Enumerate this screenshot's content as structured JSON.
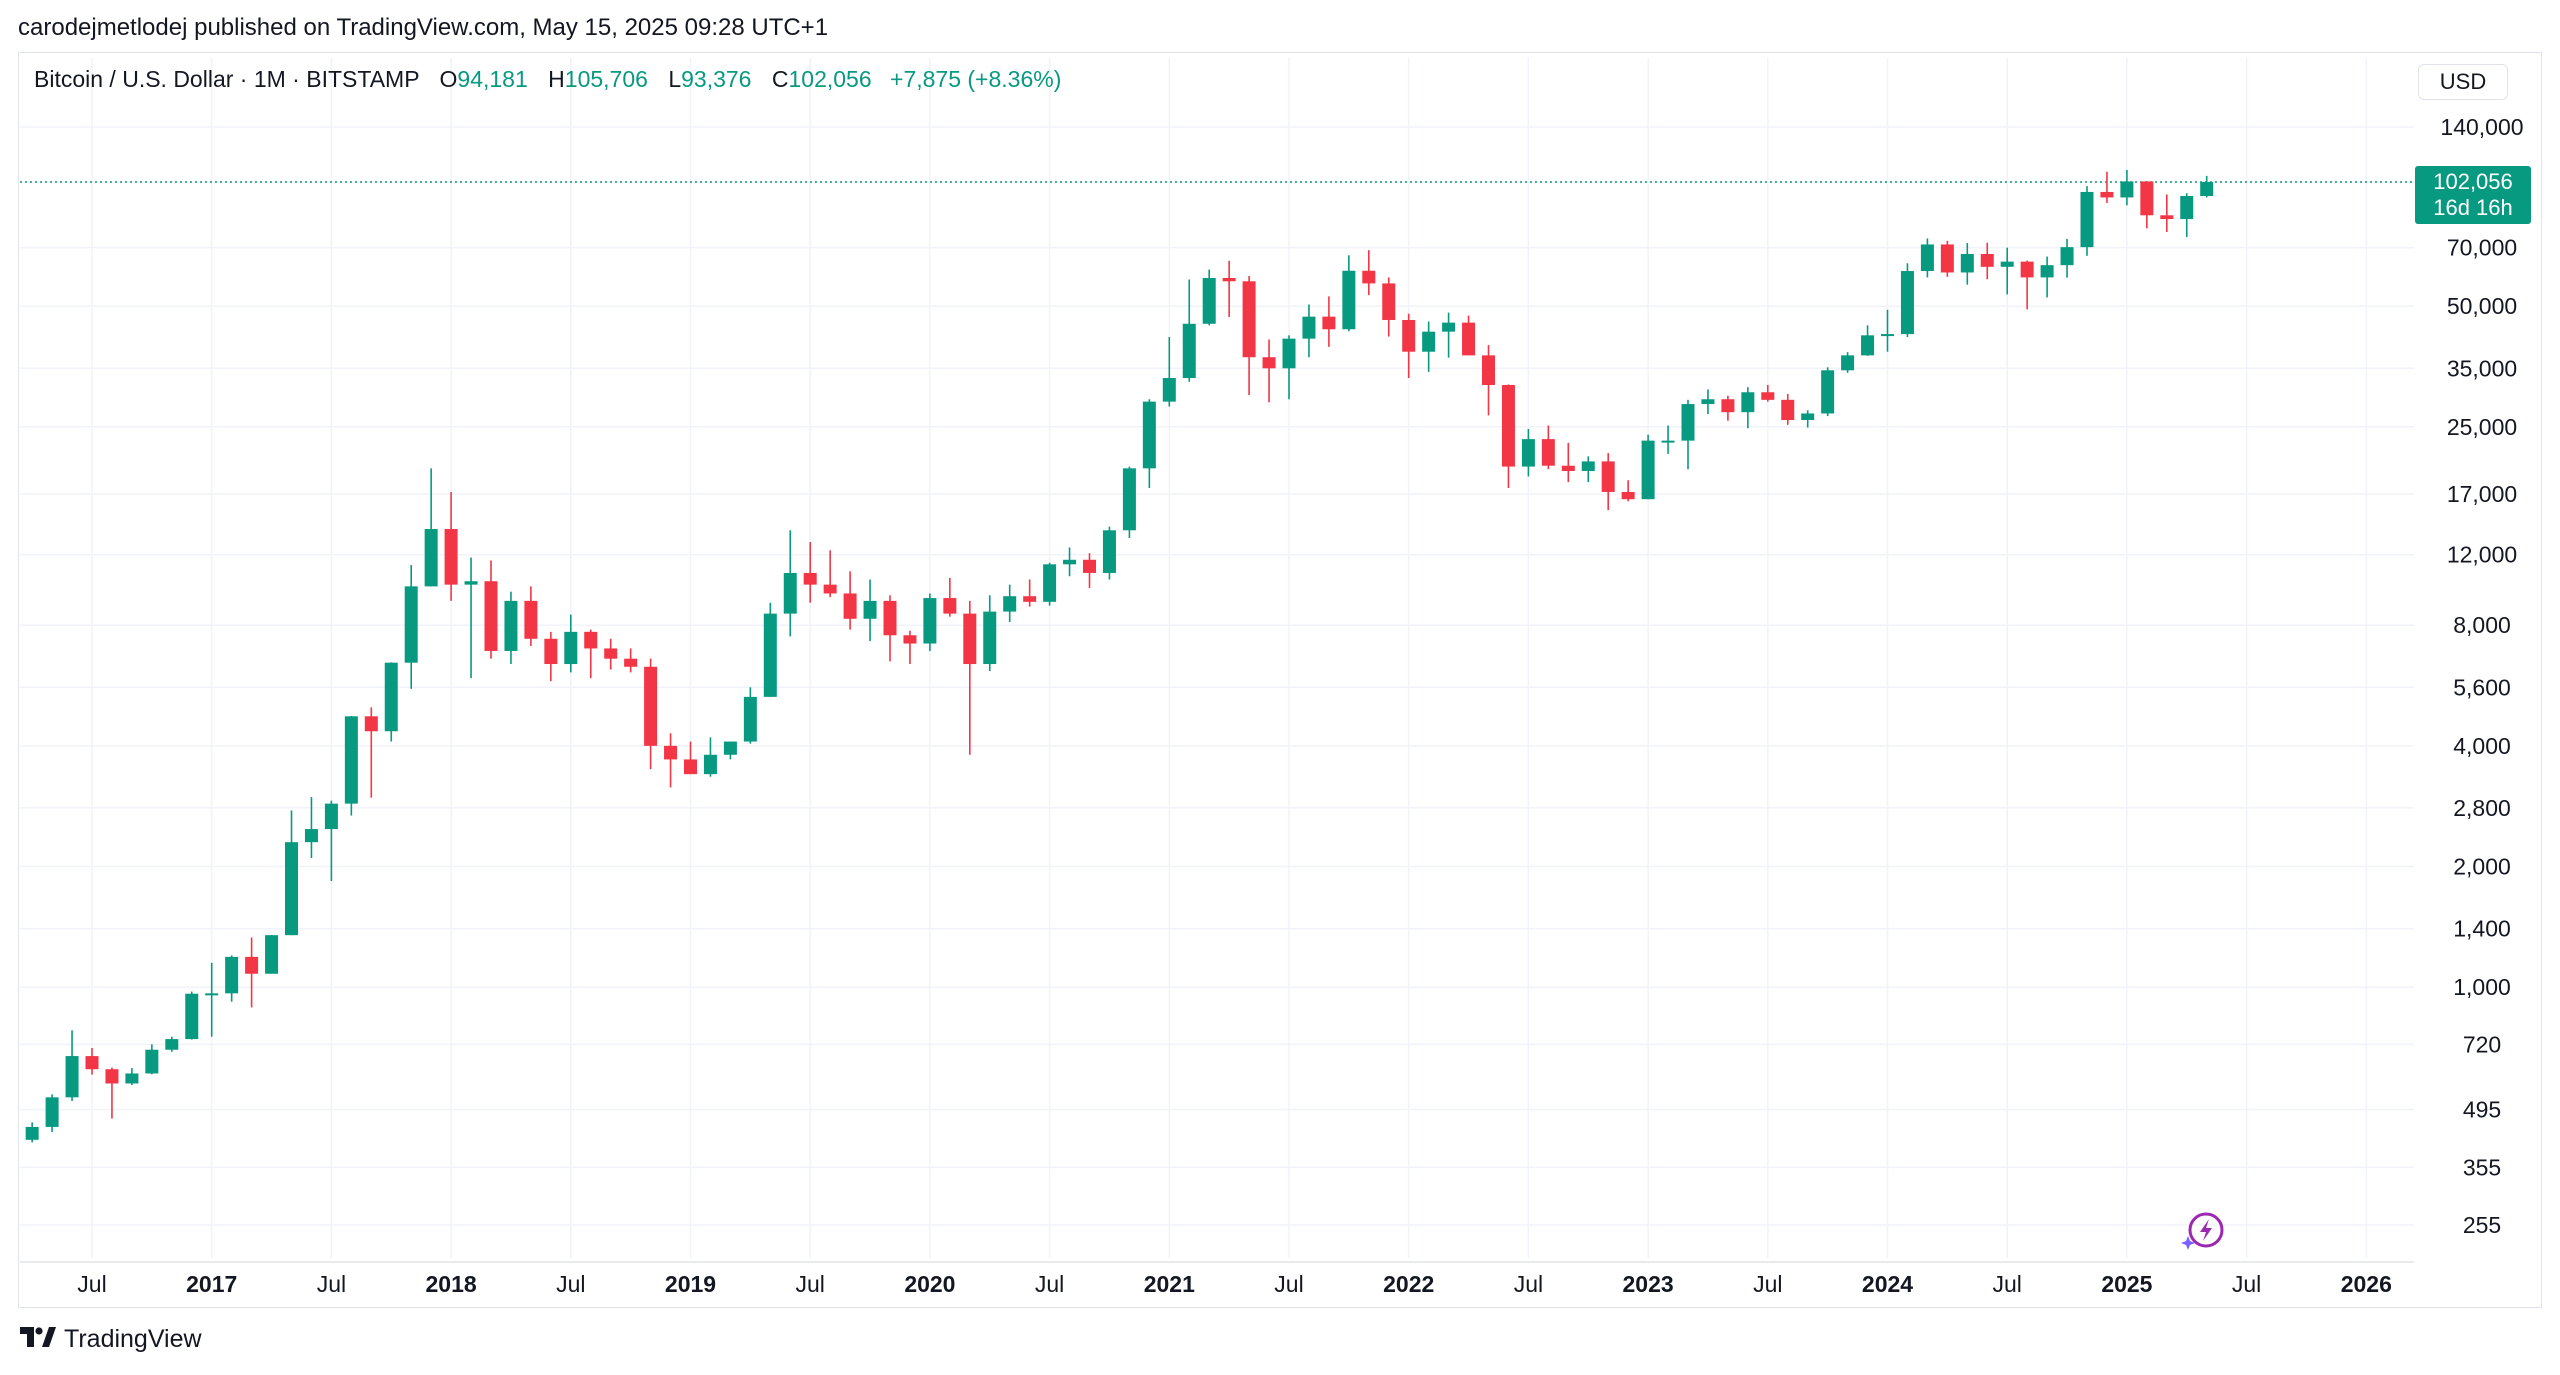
{
  "header": {
    "published": "carodejmetlodej published on TradingView.com, May 15, 2025 09:28 UTC+1"
  },
  "legend": {
    "symbol": "Bitcoin / U.S. Dollar · 1M · BITSTAMP",
    "o_label": "O",
    "o_value": "94,181",
    "h_label": "H",
    "h_value": "105,706",
    "l_label": "L",
    "l_value": "93,376",
    "c_label": "C",
    "c_value": "102,056",
    "change": "+7,875 (+8.36%)"
  },
  "price_axis": {
    "currency": "USD",
    "current_price": "102,056",
    "countdown": "16d 16h"
  },
  "footer": {
    "brand": "TradingView"
  },
  "colors": {
    "up": "#089981",
    "down": "#f23645",
    "grid": "#f0f3fa",
    "text": "#131722",
    "assistant": "#9c27b0"
  },
  "icons": {
    "logo": "tradingview-logo-icon",
    "assistant": "lightning-assistant-icon"
  },
  "chart_data": {
    "type": "candlestick",
    "title": "Bitcoin / U.S. Dollar · 1M · BITSTAMP",
    "interval": "1M",
    "yscale": "log",
    "ylim": [
      210,
      200000
    ],
    "y_ticks": [
      140000,
      70000,
      50000,
      35000,
      25000,
      17000,
      12000,
      8000,
      5600,
      4000,
      2800,
      2000,
      1400,
      1000,
      720,
      495,
      355,
      255
    ],
    "y_tick_labels": [
      "140,000",
      "70,000",
      "50,000",
      "35,000",
      "25,000",
      "17,000",
      "12,000",
      "8,000",
      "5,600",
      "4,000",
      "2,800",
      "2,000",
      "1,400",
      "1,000",
      "720",
      "495",
      "355",
      "255"
    ],
    "x_ticks": [
      {
        "date": "2016-07",
        "label": "Jul",
        "bold": false
      },
      {
        "date": "2017-01",
        "label": "2017",
        "bold": true
      },
      {
        "date": "2017-07",
        "label": "Jul",
        "bold": false
      },
      {
        "date": "2018-01",
        "label": "2018",
        "bold": true
      },
      {
        "date": "2018-07",
        "label": "Jul",
        "bold": false
      },
      {
        "date": "2019-01",
        "label": "2019",
        "bold": true
      },
      {
        "date": "2019-07",
        "label": "Jul",
        "bold": false
      },
      {
        "date": "2020-01",
        "label": "2020",
        "bold": true
      },
      {
        "date": "2020-07",
        "label": "Jul",
        "bold": false
      },
      {
        "date": "2021-01",
        "label": "2021",
        "bold": true
      },
      {
        "date": "2021-07",
        "label": "Jul",
        "bold": false
      },
      {
        "date": "2022-01",
        "label": "2022",
        "bold": true
      },
      {
        "date": "2022-07",
        "label": "Jul",
        "bold": false
      },
      {
        "date": "2023-01",
        "label": "2023",
        "bold": true
      },
      {
        "date": "2023-07",
        "label": "Jul",
        "bold": false
      },
      {
        "date": "2024-01",
        "label": "2024",
        "bold": true
      },
      {
        "date": "2024-07",
        "label": "Jul",
        "bold": false
      },
      {
        "date": "2025-01",
        "label": "2025",
        "bold": true
      },
      {
        "date": "2025-07",
        "label": "Jul",
        "bold": false
      },
      {
        "date": "2026-01",
        "label": "2026",
        "bold": true
      }
    ],
    "x_range": [
      "2016-03",
      "2026-06"
    ],
    "last_price": 102056,
    "candles": [
      {
        "date": "2016-04",
        "o": 416,
        "h": 460,
        "l": 410,
        "c": 448
      },
      {
        "date": "2016-05",
        "o": 448,
        "h": 540,
        "l": 435,
        "c": 531
      },
      {
        "date": "2016-06",
        "o": 531,
        "h": 780,
        "l": 520,
        "c": 673
      },
      {
        "date": "2016-07",
        "o": 673,
        "h": 705,
        "l": 605,
        "c": 624
      },
      {
        "date": "2016-08",
        "o": 624,
        "h": 630,
        "l": 470,
        "c": 575
      },
      {
        "date": "2016-09",
        "o": 575,
        "h": 628,
        "l": 570,
        "c": 609
      },
      {
        "date": "2016-10",
        "o": 609,
        "h": 720,
        "l": 606,
        "c": 698
      },
      {
        "date": "2016-11",
        "o": 698,
        "h": 752,
        "l": 690,
        "c": 742
      },
      {
        "date": "2016-12",
        "o": 742,
        "h": 975,
        "l": 740,
        "c": 963
      },
      {
        "date": "2017-01",
        "o": 963,
        "h": 1150,
        "l": 752,
        "c": 965
      },
      {
        "date": "2017-02",
        "o": 965,
        "h": 1200,
        "l": 920,
        "c": 1190
      },
      {
        "date": "2017-03",
        "o": 1190,
        "h": 1330,
        "l": 890,
        "c": 1080
      },
      {
        "date": "2017-04",
        "o": 1080,
        "h": 1350,
        "l": 1080,
        "c": 1348
      },
      {
        "date": "2017-05",
        "o": 1348,
        "h": 2760,
        "l": 1348,
        "c": 2300
      },
      {
        "date": "2017-06",
        "o": 2300,
        "h": 2980,
        "l": 2100,
        "c": 2480
      },
      {
        "date": "2017-07",
        "o": 2480,
        "h": 2920,
        "l": 1840,
        "c": 2870
      },
      {
        "date": "2017-08",
        "o": 2870,
        "h": 4750,
        "l": 2680,
        "c": 4740
      },
      {
        "date": "2017-09",
        "o": 4740,
        "h": 4990,
        "l": 2970,
        "c": 4350
      },
      {
        "date": "2017-10",
        "o": 4350,
        "h": 6460,
        "l": 4100,
        "c": 6450
      },
      {
        "date": "2017-11",
        "o": 6450,
        "h": 11300,
        "l": 5550,
        "c": 10000
      },
      {
        "date": "2017-12",
        "o": 10000,
        "h": 19700,
        "l": 10000,
        "c": 13900
      },
      {
        "date": "2018-01",
        "o": 13900,
        "h": 17200,
        "l": 9200,
        "c": 10100
      },
      {
        "date": "2018-02",
        "o": 10100,
        "h": 11800,
        "l": 5900,
        "c": 10300
      },
      {
        "date": "2018-03",
        "o": 10300,
        "h": 11600,
        "l": 6600,
        "c": 6900
      },
      {
        "date": "2018-04",
        "o": 6900,
        "h": 9700,
        "l": 6400,
        "c": 9200
      },
      {
        "date": "2018-05",
        "o": 9200,
        "h": 10000,
        "l": 7100,
        "c": 7400
      },
      {
        "date": "2018-06",
        "o": 7400,
        "h": 7700,
        "l": 5800,
        "c": 6400
      },
      {
        "date": "2018-07",
        "o": 6400,
        "h": 8500,
        "l": 6100,
        "c": 7700
      },
      {
        "date": "2018-08",
        "o": 7700,
        "h": 7800,
        "l": 5900,
        "c": 7000
      },
      {
        "date": "2018-09",
        "o": 7000,
        "h": 7400,
        "l": 6200,
        "c": 6600
      },
      {
        "date": "2018-10",
        "o": 6600,
        "h": 7000,
        "l": 6100,
        "c": 6300
      },
      {
        "date": "2018-11",
        "o": 6300,
        "h": 6600,
        "l": 3500,
        "c": 4000
      },
      {
        "date": "2018-12",
        "o": 4000,
        "h": 4300,
        "l": 3150,
        "c": 3700
      },
      {
        "date": "2019-01",
        "o": 3700,
        "h": 4100,
        "l": 3400,
        "c": 3400
      },
      {
        "date": "2019-02",
        "o": 3400,
        "h": 4200,
        "l": 3350,
        "c": 3800
      },
      {
        "date": "2019-03",
        "o": 3800,
        "h": 4100,
        "l": 3700,
        "c": 4100
      },
      {
        "date": "2019-04",
        "o": 4100,
        "h": 5600,
        "l": 4050,
        "c": 5300
      },
      {
        "date": "2019-05",
        "o": 5300,
        "h": 9100,
        "l": 5300,
        "c": 8550
      },
      {
        "date": "2019-06",
        "o": 8550,
        "h": 13800,
        "l": 7500,
        "c": 10800
      },
      {
        "date": "2019-07",
        "o": 10800,
        "h": 12900,
        "l": 9100,
        "c": 10100
      },
      {
        "date": "2019-08",
        "o": 10100,
        "h": 12300,
        "l": 9400,
        "c": 9600
      },
      {
        "date": "2019-09",
        "o": 9600,
        "h": 10900,
        "l": 7800,
        "c": 8300
      },
      {
        "date": "2019-10",
        "o": 8300,
        "h": 10400,
        "l": 7300,
        "c": 9200
      },
      {
        "date": "2019-11",
        "o": 9200,
        "h": 9500,
        "l": 6500,
        "c": 7550
      },
      {
        "date": "2019-12",
        "o": 7550,
        "h": 7750,
        "l": 6400,
        "c": 7200
      },
      {
        "date": "2020-01",
        "o": 7200,
        "h": 9600,
        "l": 6900,
        "c": 9350
      },
      {
        "date": "2020-02",
        "o": 9350,
        "h": 10500,
        "l": 8400,
        "c": 8550
      },
      {
        "date": "2020-03",
        "o": 8550,
        "h": 9200,
        "l": 3800,
        "c": 6400
      },
      {
        "date": "2020-04",
        "o": 6400,
        "h": 9500,
        "l": 6150,
        "c": 8650
      },
      {
        "date": "2020-05",
        "o": 8650,
        "h": 10100,
        "l": 8150,
        "c": 9450
      },
      {
        "date": "2020-06",
        "o": 9450,
        "h": 10400,
        "l": 8900,
        "c": 9150
      },
      {
        "date": "2020-07",
        "o": 9150,
        "h": 11450,
        "l": 8950,
        "c": 11350
      },
      {
        "date": "2020-08",
        "o": 11350,
        "h": 12500,
        "l": 10600,
        "c": 11650
      },
      {
        "date": "2020-09",
        "o": 11650,
        "h": 12100,
        "l": 9900,
        "c": 10800
      },
      {
        "date": "2020-10",
        "o": 10800,
        "h": 14100,
        "l": 10400,
        "c": 13800
      },
      {
        "date": "2020-11",
        "o": 13800,
        "h": 19900,
        "l": 13200,
        "c": 19700
      },
      {
        "date": "2020-12",
        "o": 19700,
        "h": 29300,
        "l": 17600,
        "c": 28900
      },
      {
        "date": "2021-01",
        "o": 28900,
        "h": 41900,
        "l": 28100,
        "c": 33100
      },
      {
        "date": "2021-02",
        "o": 33100,
        "h": 58300,
        "l": 32400,
        "c": 45200
      },
      {
        "date": "2021-03",
        "o": 45200,
        "h": 61700,
        "l": 44800,
        "c": 58800
      },
      {
        "date": "2021-04",
        "o": 58800,
        "h": 64900,
        "l": 47000,
        "c": 57700
      },
      {
        "date": "2021-05",
        "o": 57700,
        "h": 59500,
        "l": 30000,
        "c": 37300
      },
      {
        "date": "2021-06",
        "o": 37300,
        "h": 41300,
        "l": 28800,
        "c": 35000
      },
      {
        "date": "2021-07",
        "o": 35000,
        "h": 42300,
        "l": 29300,
        "c": 41500
      },
      {
        "date": "2021-08",
        "o": 41500,
        "h": 50500,
        "l": 37300,
        "c": 47100
      },
      {
        "date": "2021-09",
        "o": 47100,
        "h": 52900,
        "l": 39600,
        "c": 43800
      },
      {
        "date": "2021-10",
        "o": 43800,
        "h": 67000,
        "l": 43300,
        "c": 61300
      },
      {
        "date": "2021-11",
        "o": 61300,
        "h": 69000,
        "l": 53300,
        "c": 57000
      },
      {
        "date": "2021-12",
        "o": 57000,
        "h": 59000,
        "l": 42000,
        "c": 46200
      },
      {
        "date": "2022-01",
        "o": 46200,
        "h": 47900,
        "l": 33100,
        "c": 38500
      },
      {
        "date": "2022-02",
        "o": 38500,
        "h": 45800,
        "l": 34300,
        "c": 43200
      },
      {
        "date": "2022-03",
        "o": 43200,
        "h": 48200,
        "l": 37200,
        "c": 45500
      },
      {
        "date": "2022-04",
        "o": 45500,
        "h": 47400,
        "l": 37700,
        "c": 37700
      },
      {
        "date": "2022-05",
        "o": 37700,
        "h": 40000,
        "l": 26700,
        "c": 31800
      },
      {
        "date": "2022-06",
        "o": 31800,
        "h": 31900,
        "l": 17600,
        "c": 19900
      },
      {
        "date": "2022-07",
        "o": 19900,
        "h": 24700,
        "l": 18800,
        "c": 23300
      },
      {
        "date": "2022-08",
        "o": 23300,
        "h": 25200,
        "l": 19600,
        "c": 20000
      },
      {
        "date": "2022-09",
        "o": 20000,
        "h": 22800,
        "l": 18200,
        "c": 19400
      },
      {
        "date": "2022-10",
        "o": 19400,
        "h": 21100,
        "l": 18200,
        "c": 20500
      },
      {
        "date": "2022-11",
        "o": 20500,
        "h": 21500,
        "l": 15500,
        "c": 17200
      },
      {
        "date": "2022-12",
        "o": 17200,
        "h": 18400,
        "l": 16300,
        "c": 16500
      },
      {
        "date": "2023-01",
        "o": 16500,
        "h": 23900,
        "l": 16500,
        "c": 23100
      },
      {
        "date": "2023-02",
        "o": 23100,
        "h": 25200,
        "l": 21400,
        "c": 23100
      },
      {
        "date": "2023-03",
        "o": 23100,
        "h": 29200,
        "l": 19600,
        "c": 28500
      },
      {
        "date": "2023-04",
        "o": 28500,
        "h": 31000,
        "l": 26900,
        "c": 29300
      },
      {
        "date": "2023-05",
        "o": 29300,
        "h": 29900,
        "l": 25900,
        "c": 27200
      },
      {
        "date": "2023-06",
        "o": 27200,
        "h": 31400,
        "l": 24800,
        "c": 30500
      },
      {
        "date": "2023-07",
        "o": 30500,
        "h": 31800,
        "l": 28900,
        "c": 29200
      },
      {
        "date": "2023-08",
        "o": 29200,
        "h": 30200,
        "l": 25300,
        "c": 26000
      },
      {
        "date": "2023-09",
        "o": 26000,
        "h": 27500,
        "l": 24900,
        "c": 27000
      },
      {
        "date": "2023-10",
        "o": 27000,
        "h": 35200,
        "l": 26600,
        "c": 34600
      },
      {
        "date": "2023-11",
        "o": 34600,
        "h": 38400,
        "l": 34100,
        "c": 37700
      },
      {
        "date": "2023-12",
        "o": 37700,
        "h": 44800,
        "l": 37600,
        "c": 42300
      },
      {
        "date": "2024-01",
        "o": 42300,
        "h": 49000,
        "l": 38500,
        "c": 42600
      },
      {
        "date": "2024-02",
        "o": 42600,
        "h": 64000,
        "l": 41900,
        "c": 61200
      },
      {
        "date": "2024-03",
        "o": 61200,
        "h": 73800,
        "l": 59000,
        "c": 71300
      },
      {
        "date": "2024-04",
        "o": 71300,
        "h": 72800,
        "l": 59200,
        "c": 60700
      },
      {
        "date": "2024-05",
        "o": 60700,
        "h": 71900,
        "l": 56600,
        "c": 67500
      },
      {
        "date": "2024-06",
        "o": 67500,
        "h": 72000,
        "l": 58400,
        "c": 62700
      },
      {
        "date": "2024-07",
        "o": 62700,
        "h": 70000,
        "l": 53500,
        "c": 64600
      },
      {
        "date": "2024-08",
        "o": 64600,
        "h": 65000,
        "l": 49100,
        "c": 59000
      },
      {
        "date": "2024-09",
        "o": 59000,
        "h": 66500,
        "l": 52600,
        "c": 63300
      },
      {
        "date": "2024-10",
        "o": 63300,
        "h": 73600,
        "l": 58900,
        "c": 70200
      },
      {
        "date": "2024-11",
        "o": 70200,
        "h": 99700,
        "l": 66800,
        "c": 96400
      },
      {
        "date": "2024-12",
        "o": 96400,
        "h": 108300,
        "l": 90500,
        "c": 93400
      },
      {
        "date": "2025-01",
        "o": 93400,
        "h": 109400,
        "l": 89300,
        "c": 102400
      },
      {
        "date": "2025-02",
        "o": 102400,
        "h": 102500,
        "l": 78200,
        "c": 84300
      },
      {
        "date": "2025-03",
        "o": 84300,
        "h": 95000,
        "l": 76600,
        "c": 82500
      },
      {
        "date": "2025-04",
        "o": 82500,
        "h": 95700,
        "l": 74400,
        "c": 94181
      },
      {
        "date": "2025-05",
        "o": 94181,
        "h": 105706,
        "l": 93376,
        "c": 102056
      }
    ]
  }
}
